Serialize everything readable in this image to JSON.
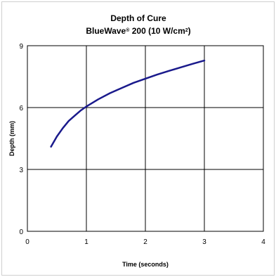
{
  "chart_data": {
    "type": "line",
    "title": "Depth of Cure",
    "subtitle_main": "BlueWave",
    "subtitle_sup1": "®",
    "subtitle_mid": " 200 (10 W/cm",
    "subtitle_sup2": "2",
    "subtitle_end": ")",
    "xlabel": "Time (seconds)",
    "ylabel": "Depth (mm)",
    "xlim": [
      0,
      4
    ],
    "ylim": [
      0,
      9
    ],
    "xticks": [
      0,
      1,
      2,
      3,
      4
    ],
    "yticks": [
      0,
      3,
      6,
      9
    ],
    "grid": true,
    "legend": "none",
    "series": [
      {
        "color": "#1a1a8c",
        "x": [
          0.4,
          0.5,
          0.6,
          0.7,
          0.8,
          0.9,
          1.0,
          1.2,
          1.4,
          1.6,
          1.8,
          2.0,
          2.2,
          2.4,
          2.6,
          2.8,
          3.0
        ],
        "y": [
          4.1,
          4.6,
          5.0,
          5.35,
          5.6,
          5.85,
          6.05,
          6.4,
          6.7,
          6.95,
          7.2,
          7.4,
          7.6,
          7.78,
          7.95,
          8.12,
          8.28
        ]
      }
    ]
  }
}
